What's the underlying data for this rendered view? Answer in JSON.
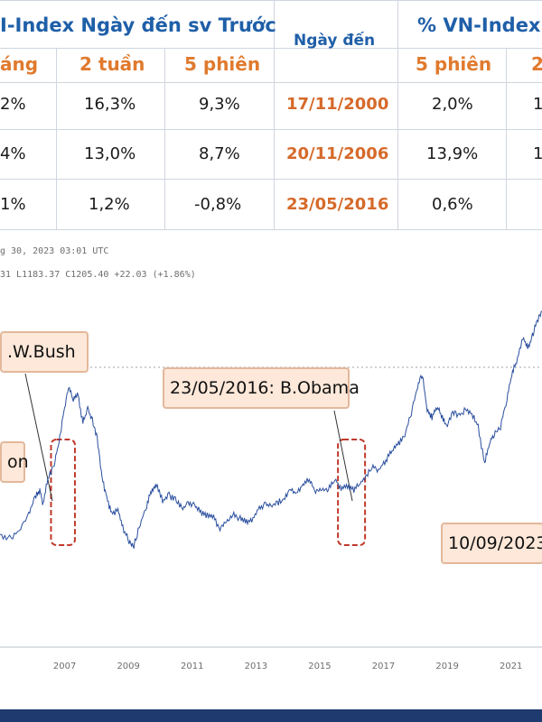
{
  "table": {
    "header_left": "I-Index Ngày đến sv Trước",
    "header_mid": "Ngày đến",
    "header_right": "% VN-Index S",
    "sub_left": [
      "áng",
      "2 tuần",
      "5 phiên"
    ],
    "sub_right": [
      "5 phiên",
      "2"
    ],
    "rows": [
      {
        "c0": "2%",
        "c1": "16,3%",
        "c2": "9,3%",
        "date": "17/11/2000",
        "c3": "2,0%",
        "c4": "1"
      },
      {
        "c0": "4%",
        "c1": "13,0%",
        "c2": "8,7%",
        "date": "20/11/2006",
        "c3": "13,9%",
        "c4": "1"
      },
      {
        "c0": "1%",
        "c1": "1,2%",
        "c2": "-0,8%",
        "date": "23/05/2016",
        "c3": "0,6%",
        "c4": ""
      }
    ]
  },
  "chart_meta": {
    "date_line": "g 30, 2023 03:01 UTC",
    "ohlc_line": "31  L1183.37  C1205.40  +22.03 (+1.86%)"
  },
  "annotations": {
    "bush": ".W.Bush",
    "obama": "23/05/2016: B.Obama",
    "clinton": "on",
    "date_2023": "10/09/2023"
  },
  "colors": {
    "line": "#2b4f9e",
    "header_blue": "#1f5fa8",
    "sub_orange": "#e07a2e",
    "date_orange": "#d66a2a",
    "anno_bg": "#fde8d9",
    "highlight_red": "#c0392b"
  },
  "chart_data": {
    "type": "line",
    "x_ticks": [
      "2007",
      "2009",
      "2011",
      "2013",
      "2015",
      "2017",
      "2019",
      "2021"
    ],
    "series": [
      {
        "values": [
          [
            2005.0,
            320
          ],
          [
            2005.3,
            300
          ],
          [
            2005.6,
            340
          ],
          [
            2005.9,
            430
          ],
          [
            2006.1,
            520
          ],
          [
            2006.25,
            560
          ],
          [
            2006.35,
            480
          ],
          [
            2006.5,
            620
          ],
          [
            2006.7,
            700
          ],
          [
            2006.85,
            820
          ],
          [
            2007.0,
            980
          ],
          [
            2007.15,
            1110
          ],
          [
            2007.3,
            1050
          ],
          [
            2007.45,
            1070
          ],
          [
            2007.6,
            920
          ],
          [
            2007.75,
            1000
          ],
          [
            2007.9,
            930
          ],
          [
            2008.05,
            840
          ],
          [
            2008.2,
            620
          ],
          [
            2008.35,
            520
          ],
          [
            2008.5,
            430
          ],
          [
            2008.7,
            450
          ],
          [
            2008.85,
            360
          ],
          [
            2009.05,
            280
          ],
          [
            2009.2,
            260
          ],
          [
            2009.4,
            380
          ],
          [
            2009.6,
            470
          ],
          [
            2009.75,
            560
          ],
          [
            2009.9,
            590
          ],
          [
            2010.1,
            500
          ],
          [
            2010.3,
            530
          ],
          [
            2010.5,
            510
          ],
          [
            2010.7,
            460
          ],
          [
            2010.9,
            490
          ],
          [
            2011.1,
            480
          ],
          [
            2011.3,
            440
          ],
          [
            2011.5,
            420
          ],
          [
            2011.7,
            410
          ],
          [
            2011.9,
            350
          ],
          [
            2012.1,
            390
          ],
          [
            2012.3,
            430
          ],
          [
            2012.5,
            410
          ],
          [
            2012.7,
            390
          ],
          [
            2012.9,
            400
          ],
          [
            2013.1,
            460
          ],
          [
            2013.3,
            480
          ],
          [
            2013.5,
            470
          ],
          [
            2013.7,
            490
          ],
          [
            2013.9,
            510
          ],
          [
            2014.1,
            560
          ],
          [
            2014.3,
            540
          ],
          [
            2014.5,
            590
          ],
          [
            2014.7,
            620
          ],
          [
            2014.9,
            550
          ],
          [
            2015.1,
            570
          ],
          [
            2015.3,
            560
          ],
          [
            2015.5,
            620
          ],
          [
            2015.7,
            570
          ],
          [
            2015.9,
            580
          ],
          [
            2016.1,
            560
          ],
          [
            2016.3,
            590
          ],
          [
            2016.5,
            640
          ],
          [
            2016.7,
            680
          ],
          [
            2016.9,
            670
          ],
          [
            2017.1,
            720
          ],
          [
            2017.3,
            770
          ],
          [
            2017.5,
            810
          ],
          [
            2017.7,
            860
          ],
          [
            2017.9,
            970
          ],
          [
            2018.1,
            1120
          ],
          [
            2018.25,
            1180
          ],
          [
            2018.4,
            990
          ],
          [
            2018.55,
            950
          ],
          [
            2018.7,
            1010
          ],
          [
            2018.85,
            960
          ],
          [
            2019.0,
            900
          ],
          [
            2019.2,
            980
          ],
          [
            2019.4,
            960
          ],
          [
            2019.6,
            990
          ],
          [
            2019.8,
            970
          ],
          [
            2020.0,
            900
          ],
          [
            2020.2,
            700
          ],
          [
            2020.35,
            820
          ],
          [
            2020.5,
            860
          ],
          [
            2020.7,
            900
          ],
          [
            2020.9,
            1050
          ],
          [
            2021.05,
            1180
          ],
          [
            2021.2,
            1250
          ],
          [
            2021.4,
            1380
          ],
          [
            2021.55,
            1320
          ],
          [
            2021.7,
            1390
          ],
          [
            2021.85,
            1470
          ],
          [
            2022.0,
            1520
          ]
        ]
      }
    ],
    "reference_line": 1220,
    "highlight_regions": [
      [
        2006.6,
        2007.35
      ],
      [
        2015.6,
        2016.45
      ]
    ]
  }
}
